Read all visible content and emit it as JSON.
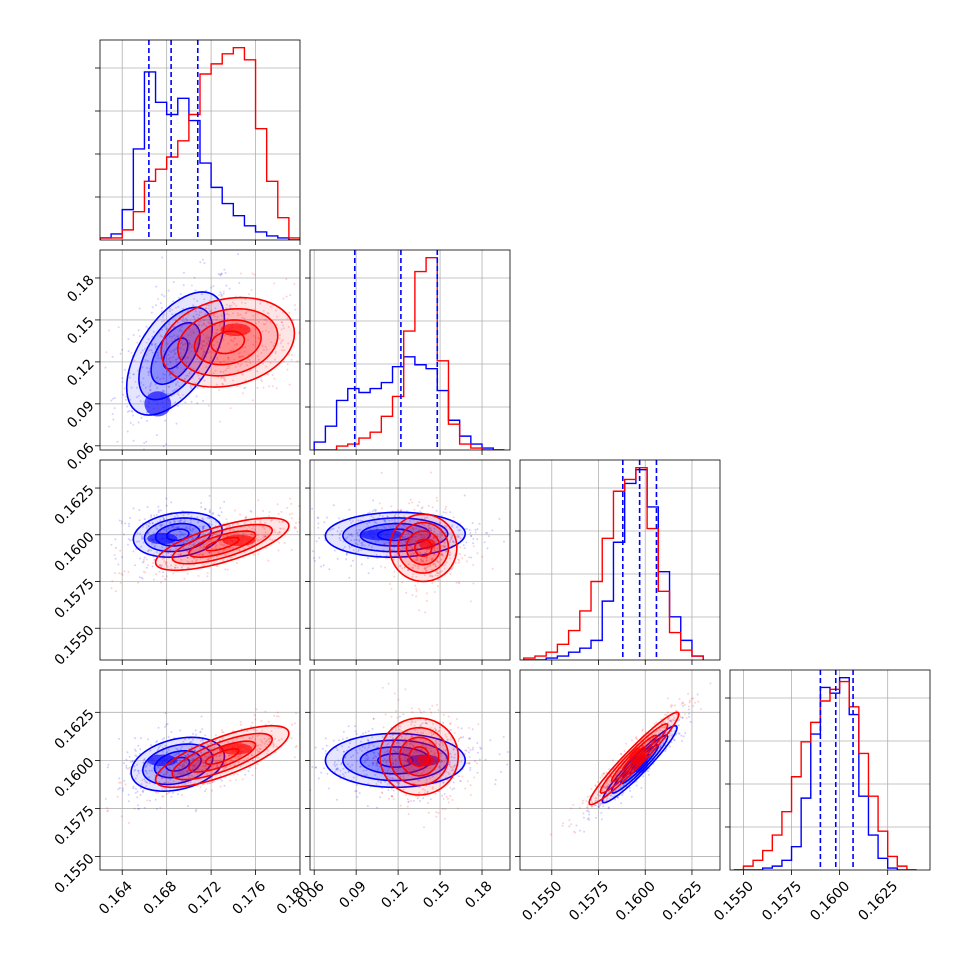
{
  "chart_data": {
    "type": "corner",
    "grid": true,
    "colors": {
      "blue": "#0000ff",
      "red": "#ff0000"
    },
    "parameters": [
      {
        "range": [
          0.162,
          0.18
        ],
        "ticks": [
          0.164,
          0.168,
          0.172,
          0.176,
          0.18
        ],
        "tick_labels": [
          "0.164",
          "0.168",
          "0.172",
          "0.176",
          "0.180"
        ]
      },
      {
        "range": [
          0.057,
          0.2
        ],
        "ticks": [
          0.06,
          0.09,
          0.12,
          0.15,
          0.18
        ],
        "tick_labels": [
          "0.06",
          "0.09",
          "0.12",
          "0.15",
          "0.18"
        ]
      },
      {
        "range": [
          0.1533,
          0.164
        ],
        "ticks": [
          0.155,
          0.1575,
          0.16,
          0.1625
        ],
        "tick_labels": [
          "0.1550",
          "0.1575",
          "0.1600",
          "0.1625"
        ]
      },
      {
        "range": [
          0.1543,
          0.1647
        ],
        "ticks": [
          0.155,
          0.1575,
          0.16,
          0.1625
        ],
        "tick_labels": [
          "0.1550",
          "0.1575",
          "0.1600",
          "0.1625"
        ]
      }
    ],
    "quantiles_blue": [
      [
        0.1664,
        0.1684,
        0.1708
      ],
      [
        0.089,
        0.122,
        0.148
      ],
      [
        0.1588,
        0.1597,
        0.1606
      ],
      [
        0.159,
        0.1598,
        0.1607
      ]
    ],
    "series": [
      {
        "color": "blue",
        "hist": [
          {
            "edges": [
              0.162,
              0.163,
              0.164,
              0.165,
              0.166,
              0.167,
              0.168,
              0.169,
              0.17,
              0.171,
              0.172,
              0.173,
              0.174,
              0.175,
              0.176,
              0.177,
              0.178,
              0.179,
              0.18
            ],
            "counts": [
              0.01,
              0.03,
              0.15,
              0.45,
              0.83,
              0.68,
              0.62,
              0.7,
              0.59,
              0.38,
              0.26,
              0.18,
              0.12,
              0.07,
              0.04,
              0.02,
              0.01,
              0.0
            ]
          },
          {
            "edges": [
              0.06,
              0.068,
              0.076,
              0.084,
              0.092,
              0.1,
              0.108,
              0.116,
              0.124,
              0.132,
              0.14,
              0.148,
              0.156,
              0.164,
              0.172,
              0.18,
              0.188,
              0.196
            ],
            "counts": [
              0.04,
              0.12,
              0.25,
              0.31,
              0.29,
              0.31,
              0.34,
              0.42,
              0.47,
              0.43,
              0.41,
              0.3,
              0.15,
              0.07,
              0.03,
              0.01,
              0.0
            ]
          },
          {
            "edges": [
              0.1535,
              0.1541,
              0.1547,
              0.1553,
              0.1559,
              0.1565,
              0.1571,
              0.1577,
              0.1583,
              0.1589,
              0.1595,
              0.1601,
              0.1607,
              0.1613,
              0.1619,
              0.1625,
              0.1631
            ],
            "counts": [
              0.0,
              0.0,
              0.01,
              0.02,
              0.04,
              0.06,
              0.1,
              0.3,
              0.6,
              0.9,
              0.97,
              0.78,
              0.45,
              0.22,
              0.1,
              0.02
            ]
          },
          {
            "edges": [
              0.1545,
              0.155,
              0.1555,
              0.156,
              0.1565,
              0.157,
              0.1575,
              0.158,
              0.1585,
              0.159,
              0.1595,
              0.16,
              0.1605,
              0.161,
              0.1615,
              0.162,
              0.1625,
              0.163,
              0.1635,
              0.164
            ],
            "counts": [
              0.0,
              0.0,
              0.0,
              0.01,
              0.02,
              0.05,
              0.12,
              0.37,
              0.7,
              0.94,
              0.91,
              0.99,
              0.8,
              0.38,
              0.18,
              0.06,
              0.01,
              0.0,
              0.0
            ]
          }
        ],
        "pairs": {
          "1-0": {
            "center": [
              0.1688,
              0.126
            ],
            "sigma": [
              0.0022,
              0.022
            ],
            "rho": 0.55,
            "mode": [
              0.1672,
              0.09
            ],
            "mode_sigma": [
              0.0008,
              0.006
            ]
          },
          "2-0": {
            "center": [
              0.169,
              0.16
            ],
            "sigma": [
              0.002,
              0.0006
            ],
            "rho": 0.2,
            "mode": [
              0.1676,
              0.1598
            ],
            "mode_sigma": [
              0.0009,
              0.0002
            ]
          },
          "3-0": {
            "center": [
              0.169,
              0.1598
            ],
            "sigma": [
              0.0021,
              0.0007
            ],
            "rho": 0.3,
            "mode": [
              0.1676,
              0.16
            ],
            "mode_sigma": [
              0.0009,
              0.0002
            ]
          },
          "2-1": {
            "center": [
              0.118,
              0.16
            ],
            "sigma": [
              0.025,
              0.0006
            ],
            "rho": 0.05,
            "mode": [
              0.108,
              0.16
            ],
            "mode_sigma": [
              0.01,
              0.0002
            ]
          },
          "3-1": {
            "center": [
              0.118,
              0.16
            ],
            "sigma": [
              0.025,
              0.0007
            ],
            "rho": 0.0,
            "mode": [
              0.138,
              0.16
            ],
            "mode_sigma": [
              0.008,
              0.0002
            ]
          },
          "3-2": {
            "center": [
              0.1597,
              0.1598
            ],
            "sigma": [
              0.001,
              0.001
            ],
            "rho": 0.95,
            "mode": [
              0.1597,
              0.1598
            ],
            "mode_sigma": [
              0.0003,
              0.0003
            ]
          }
        }
      },
      {
        "color": "red",
        "hist": [
          {
            "edges": [
              0.162,
              0.163,
              0.164,
              0.165,
              0.166,
              0.167,
              0.168,
              0.169,
              0.17,
              0.171,
              0.172,
              0.173,
              0.174,
              0.175,
              0.176,
              0.177,
              0.178,
              0.179,
              0.18
            ],
            "counts": [
              0.01,
              0.01,
              0.05,
              0.14,
              0.29,
              0.35,
              0.41,
              0.49,
              0.62,
              0.82,
              0.87,
              0.92,
              0.95,
              0.89,
              0.55,
              0.29,
              0.11,
              0.01
            ]
          },
          {
            "edges": [
              0.06,
              0.068,
              0.076,
              0.084,
              0.092,
              0.1,
              0.108,
              0.116,
              0.124,
              0.132,
              0.14,
              0.148,
              0.156,
              0.164,
              0.172,
              0.18,
              0.188,
              0.196
            ],
            "counts": [
              0.0,
              0.0,
              0.02,
              0.03,
              0.06,
              0.09,
              0.17,
              0.27,
              0.6,
              0.9,
              0.97,
              0.45,
              0.13,
              0.03,
              0.01,
              0.0,
              0.0
            ]
          },
          {
            "edges": [
              0.1535,
              0.1541,
              0.1547,
              0.1553,
              0.1559,
              0.1565,
              0.1571,
              0.1577,
              0.1583,
              0.1589,
              0.1595,
              0.1601,
              0.1607,
              0.1613,
              0.1619,
              0.1625,
              0.1631
            ],
            "counts": [
              0.01,
              0.02,
              0.04,
              0.08,
              0.15,
              0.25,
              0.4,
              0.62,
              0.86,
              0.92,
              0.98,
              0.67,
              0.35,
              0.14,
              0.05,
              0.02
            ]
          },
          {
            "edges": [
              0.1545,
              0.155,
              0.1555,
              0.156,
              0.1565,
              0.157,
              0.1575,
              0.158,
              0.1585,
              0.159,
              0.1595,
              0.16,
              0.1605,
              0.161,
              0.1615,
              0.162,
              0.1625,
              0.163,
              0.1635,
              0.164
            ],
            "counts": [
              0.0,
              0.02,
              0.05,
              0.1,
              0.18,
              0.3,
              0.48,
              0.66,
              0.76,
              0.87,
              0.93,
              0.97,
              0.84,
              0.6,
              0.38,
              0.2,
              0.07,
              0.02,
              0.0
            ]
          }
        ],
        "pairs": {
          "1-0": {
            "center": [
              0.1735,
              0.134
            ],
            "sigma": [
              0.003,
              0.016
            ],
            "rho": 0.2,
            "mode": [
              0.1742,
              0.143
            ],
            "mode_sigma": [
              0.0009,
              0.003
            ]
          },
          "2-0": {
            "center": [
              0.173,
              0.1595
            ],
            "sigma": [
              0.003,
              0.0007
            ],
            "rho": 0.7,
            "mode": [
              0.1745,
              0.1597
            ],
            "mode_sigma": [
              0.001,
              0.0002
            ]
          },
          "3-0": {
            "center": [
              0.173,
              0.1602
            ],
            "sigma": [
              0.003,
              0.0008
            ],
            "rho": 0.75,
            "mode": [
              0.1742,
              0.1606
            ],
            "mode_sigma": [
              0.001,
              0.0002
            ]
          },
          "2-1": {
            "center": [
              0.138,
              0.1593
            ],
            "sigma": [
              0.012,
              0.0009
            ],
            "rho": 0.0,
            "mode": [
              0.141,
              0.1595
            ],
            "mode_sigma": [
              0.004,
              0.0002
            ]
          },
          "3-1": {
            "center": [
              0.135,
              0.1602
            ],
            "sigma": [
              0.014,
              0.001
            ],
            "rho": 0.0,
            "mode": [
              0.14,
              0.16
            ],
            "mode_sigma": [
              0.004,
              0.0002
            ]
          },
          "3-2": {
            "center": [
              0.1594,
              0.1601
            ],
            "sigma": [
              0.0012,
              0.0012
            ],
            "rho": 0.96,
            "mode": [
              0.1596,
              0.1602
            ],
            "mode_sigma": [
              0.0003,
              0.0003
            ]
          }
        }
      }
    ]
  }
}
